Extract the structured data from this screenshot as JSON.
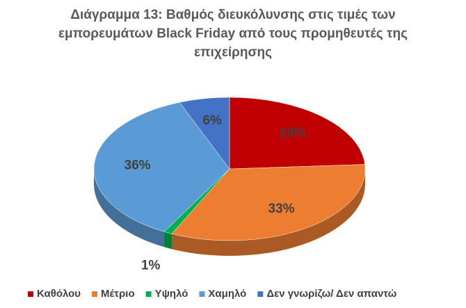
{
  "chart_data": {
    "type": "pie3d",
    "title": "Διάγραμμα 13: Βαθμός διευκόλυνσης στις τιμές των εμπορευμάτων Black Friday από τους προμηθευτές της επιχείρησης",
    "categories": [
      "Καθόλου",
      "Μέτριο",
      "Υψηλό",
      "Χαμηλό",
      "Δεν γνωρίζω/ Δεν απαντώ"
    ],
    "values": [
      24,
      33,
      1,
      36,
      6
    ],
    "value_labels": [
      "24%",
      "33%",
      "1%",
      "36%",
      "6%"
    ],
    "colors": [
      "#c00000",
      "#ed7d31",
      "#00b050",
      "#5b9bd5",
      "#4472c4"
    ],
    "legend": "bottom"
  }
}
